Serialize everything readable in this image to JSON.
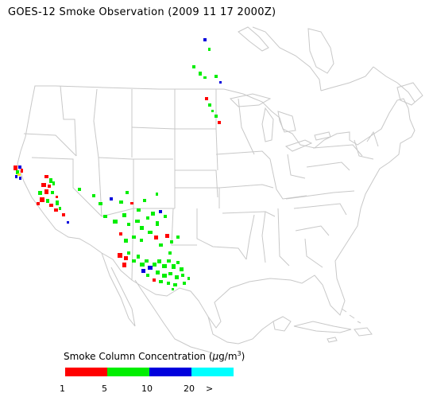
{
  "title": "GOES-12 Smoke Observation (2009 11 17  2000Z)",
  "legend": {
    "title_prefix": "Smoke Column Concentration (",
    "title_unit_mu": "μ",
    "title_unit_rest": "g/m",
    "title_unit_sup": "3",
    "title_suffix": ")",
    "bins": [
      {
        "color": "#ff0000"
      },
      {
        "color": "#00ee00"
      },
      {
        "color": "#0000dd"
      },
      {
        "color": "#00ffff"
      }
    ],
    "tick_labels": [
      "1",
      "5",
      "10",
      "20",
      ">"
    ]
  },
  "colors": {
    "map_lines": "#c8c8c8",
    "text": "#000000"
  }
}
